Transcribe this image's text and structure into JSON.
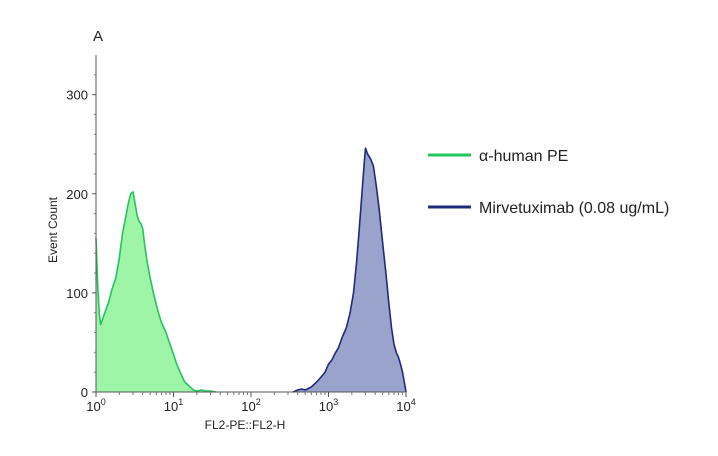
{
  "chart_data": {
    "type": "area",
    "panel_label": "A",
    "xlabel": "FL2-PE::FL2-H",
    "ylabel": "Event Count",
    "x_scale": "log",
    "xlim": [
      1,
      10000
    ],
    "ylim": [
      0,
      340
    ],
    "x_ticks": [
      {
        "value": 1,
        "base": "10",
        "exp": "0"
      },
      {
        "value": 10,
        "base": "10",
        "exp": "1"
      },
      {
        "value": 100,
        "base": "10",
        "exp": "2"
      },
      {
        "value": 1000,
        "base": "10",
        "exp": "3"
      },
      {
        "value": 10000,
        "base": "10",
        "exp": "4"
      }
    ],
    "y_ticks": [
      {
        "value": 0,
        "label": "0"
      },
      {
        "value": 100,
        "label": "100"
      },
      {
        "value": 200,
        "label": "200"
      },
      {
        "value": 300,
        "label": "300"
      }
    ],
    "legend_position": "right",
    "series": [
      {
        "name": "α-human PE",
        "line_color": "#22c55e",
        "fill_color": "#9ef5a8",
        "x": [
          1,
          1.05,
          1.1,
          1.15,
          1.2,
          1.3,
          1.45,
          1.6,
          1.8,
          2.0,
          2.2,
          2.4,
          2.6,
          2.8,
          3.0,
          3.2,
          3.4,
          3.6,
          3.8,
          4.0,
          4.3,
          4.6,
          5.0,
          5.5,
          6.0,
          6.5,
          7.0,
          8.0,
          9.0,
          10,
          11,
          12.5,
          14,
          16,
          18,
          20,
          23,
          26,
          30,
          35
        ],
        "y": [
          155,
          110,
          80,
          68,
          72,
          80,
          90,
          103,
          115,
          135,
          160,
          175,
          190,
          200,
          202,
          190,
          178,
          172,
          170,
          165,
          145,
          130,
          115,
          100,
          88,
          78,
          70,
          60,
          48,
          38,
          28,
          18,
          10,
          6,
          2,
          1,
          2,
          1,
          1,
          0
        ]
      },
      {
        "name": "Mirvetuximab (0.08 ug/mL)",
        "line_color": "#1f2a7a",
        "fill_color": "#9aa3cc",
        "x": [
          350,
          400,
          450,
          500,
          600,
          700,
          800,
          900,
          1000,
          1100,
          1200,
          1350,
          1500,
          1700,
          1900,
          2100,
          2300,
          2500,
          2700,
          2900,
          3000,
          3200,
          3500,
          3800,
          4100,
          4500,
          5000,
          5500,
          6000,
          6500,
          7000,
          7500,
          8000,
          8500,
          9000,
          9500,
          10000
        ],
        "y": [
          0,
          2,
          3,
          2,
          5,
          10,
          15,
          20,
          28,
          32,
          38,
          45,
          55,
          65,
          80,
          100,
          130,
          165,
          200,
          232,
          246,
          240,
          235,
          228,
          210,
          185,
          150,
          120,
          90,
          65,
          48,
          40,
          35,
          28,
          20,
          10,
          0
        ]
      }
    ]
  }
}
